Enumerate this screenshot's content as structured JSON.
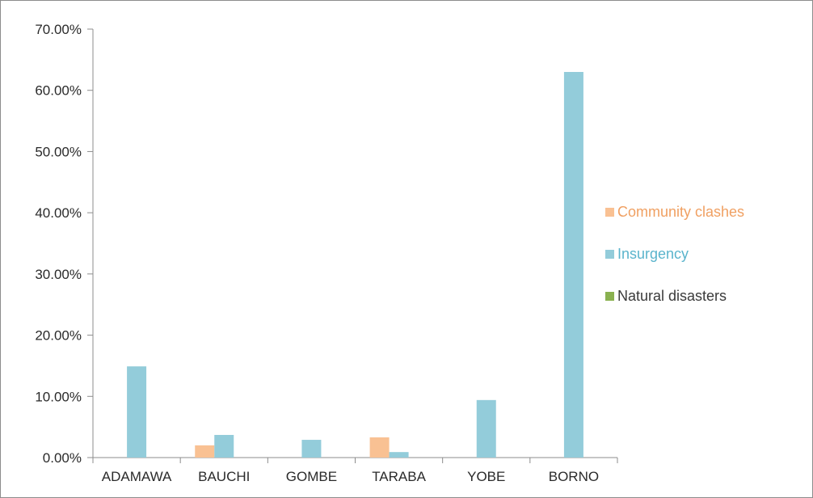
{
  "chart_data": {
    "type": "bar",
    "categories": [
      "ADAMAWA",
      "BAUCHI",
      "GOMBE",
      "TARABA",
      "YOBE",
      "BORNO"
    ],
    "series": [
      {
        "name": "Community clashes",
        "color": "#f9c193",
        "label_color": "#f0a062",
        "values": [
          0,
          2.0,
          0,
          3.3,
          0,
          0
        ]
      },
      {
        "name": "Insurgency",
        "color": "#93ccda",
        "label_color": "#5ab4cc",
        "values": [
          14.9,
          3.7,
          2.9,
          0.9,
          9.4,
          63.0
        ]
      },
      {
        "name": "Natural disasters",
        "color": "#8ab150",
        "label_color": "#3a3a3a",
        "values": [
          0,
          0,
          0,
          0,
          0,
          0
        ]
      }
    ],
    "yticks": [
      "0.00%",
      "10.00%",
      "20.00%",
      "30.00%",
      "40.00%",
      "50.00%",
      "60.00%",
      "70.00%"
    ],
    "ylim": [
      0,
      70
    ],
    "grid": false,
    "legend_position": "right"
  }
}
